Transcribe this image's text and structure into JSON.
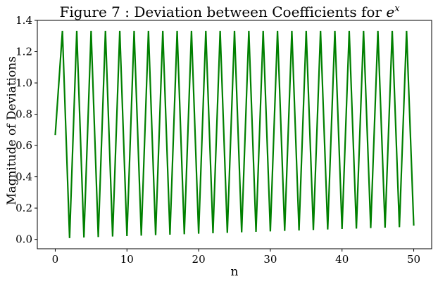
{
  "chart_data": {
    "type": "line",
    "title_main": "Figure 7 : Deviation between Coefficients for ",
    "title_math_base": "e",
    "title_math_sup": "x",
    "xlabel": "n",
    "ylabel": "Magnitude of Deviations",
    "xlim": [
      -2.5,
      52.5
    ],
    "ylim": [
      -0.06,
      1.4
    ],
    "xticks": [
      0,
      10,
      20,
      30,
      40,
      50
    ],
    "xtick_labels": [
      "0",
      "10",
      "20",
      "30",
      "40",
      "50"
    ],
    "yticks": [
      0.0,
      0.2,
      0.4,
      0.6,
      0.8,
      1.0,
      1.2,
      1.4
    ],
    "ytick_labels": [
      "0.0",
      "0.2",
      "0.4",
      "0.6",
      "0.8",
      "1.0",
      "1.2",
      "1.4"
    ],
    "grid": false,
    "line_color": "#008000",
    "series": [
      {
        "x": [
          0,
          1,
          2,
          3,
          4,
          5,
          6,
          7,
          8,
          9,
          10,
          11,
          12,
          13,
          14,
          15,
          16,
          17,
          18,
          19,
          20,
          21,
          22,
          23,
          24,
          25,
          26,
          27,
          28,
          29,
          30,
          31,
          32,
          33,
          34,
          35,
          36,
          37,
          38,
          39,
          40,
          41,
          42,
          43,
          44,
          45,
          46,
          47,
          48,
          49,
          50
        ],
        "values": [
          0.667,
          1.333,
          0.008,
          1.333,
          0.012,
          1.333,
          0.015,
          1.333,
          0.018,
          1.333,
          0.021,
          1.333,
          0.024,
          1.333,
          0.027,
          1.333,
          0.03,
          1.333,
          0.033,
          1.333,
          0.036,
          1.333,
          0.039,
          1.333,
          0.042,
          1.333,
          0.045,
          1.333,
          0.048,
          1.333,
          0.051,
          1.333,
          0.054,
          1.333,
          0.057,
          1.333,
          0.06,
          1.333,
          0.063,
          1.333,
          0.066,
          1.333,
          0.069,
          1.333,
          0.072,
          1.333,
          0.075,
          1.333,
          0.078,
          1.333,
          0.088
        ]
      }
    ]
  }
}
